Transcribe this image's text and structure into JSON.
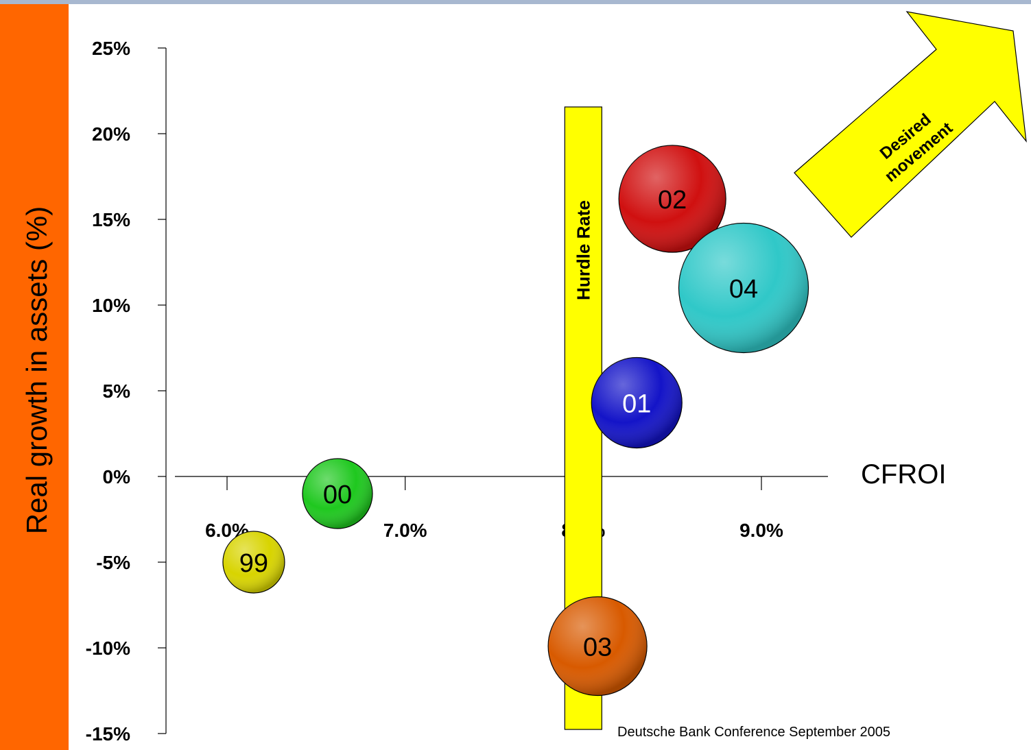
{
  "colors": {
    "side_band": "#ff6600",
    "hurdle": "#ffff00",
    "arrow": "#ffff00",
    "top_border": "#a8b8d0"
  },
  "chart_data": {
    "type": "bubble",
    "ylabel": "Real growth in assets (%)",
    "xlabel": "CFROI",
    "x_ticks": [
      "6.0%",
      "7.0%",
      "8.0%",
      "9.0%"
    ],
    "x_tick_values": [
      6.0,
      7.0,
      8.0,
      9.0
    ],
    "y_ticks": [
      "25%",
      "20%",
      "15%",
      "10%",
      "5%",
      "0%",
      "-5%",
      "-10%",
      "-15%"
    ],
    "y_tick_values": [
      25,
      20,
      15,
      10,
      5,
      0,
      -5,
      -10,
      -15
    ],
    "xlim": [
      5.7,
      9.4
    ],
    "ylim": [
      -15,
      25
    ],
    "points": [
      {
        "label": "99",
        "x": 6.15,
        "y": -5.0,
        "size": 3,
        "color": "#d8d400",
        "text_color": "#000000"
      },
      {
        "label": "00",
        "x": 6.62,
        "y": -1.0,
        "size": 3.4,
        "color": "#1fc81f",
        "text_color": "#000000"
      },
      {
        "label": "01",
        "x": 8.3,
        "y": 4.3,
        "size": 4.4,
        "color": "#1414c8",
        "text_color": "#ffffff"
      },
      {
        "label": "02",
        "x": 8.5,
        "y": 16.2,
        "size": 5.2,
        "color": "#d01010",
        "text_color": "#000000"
      },
      {
        "label": "03",
        "x": 8.08,
        "y": -9.9,
        "size": 4.8,
        "color": "#d85a00",
        "text_color": "#000000"
      },
      {
        "label": "04",
        "x": 8.9,
        "y": 11.0,
        "size": 6.3,
        "color": "#30c8c8",
        "text_color": "#000000"
      }
    ],
    "hurdle": {
      "label": "Hurdle Rate",
      "x": 8.0
    },
    "arrow_label": [
      "Desired",
      "movement"
    ]
  },
  "footer": "Deutsche Bank Conference September 2005"
}
